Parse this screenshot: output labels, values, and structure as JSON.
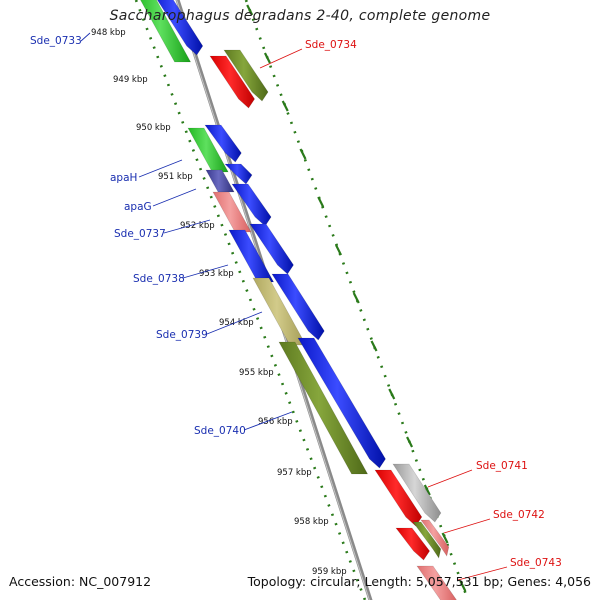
{
  "title": "Saccharophagus degradans 2-40, complete genome",
  "accession": "Accession: NC_007912",
  "topology": "Topology: circular; Length: 5,057,531 bp; Genes: 4,056",
  "colors": {
    "backbone": "#8a8a8a",
    "ruler_dots": "#2a7a1a",
    "label_left": "#1a2fb0",
    "label_right": "#dd1111"
  },
  "ruler_ticks": [
    "948 kbp",
    "949 kbp",
    "950 kbp",
    "951 kbp",
    "952 kbp",
    "953 kbp",
    "954 kbp",
    "955 kbp",
    "956 kbp",
    "957 kbp",
    "958 kbp",
    "959 kbp"
  ],
  "gene_labels": {
    "left": [
      "Sde_0733",
      "apaH",
      "apaG",
      "Sde_0737",
      "Sde_0738",
      "Sde_0739",
      "Sde_0740"
    ],
    "right": [
      "Sde_0734",
      "Sde_0741",
      "Sde_0742",
      "Sde_0743"
    ]
  }
}
